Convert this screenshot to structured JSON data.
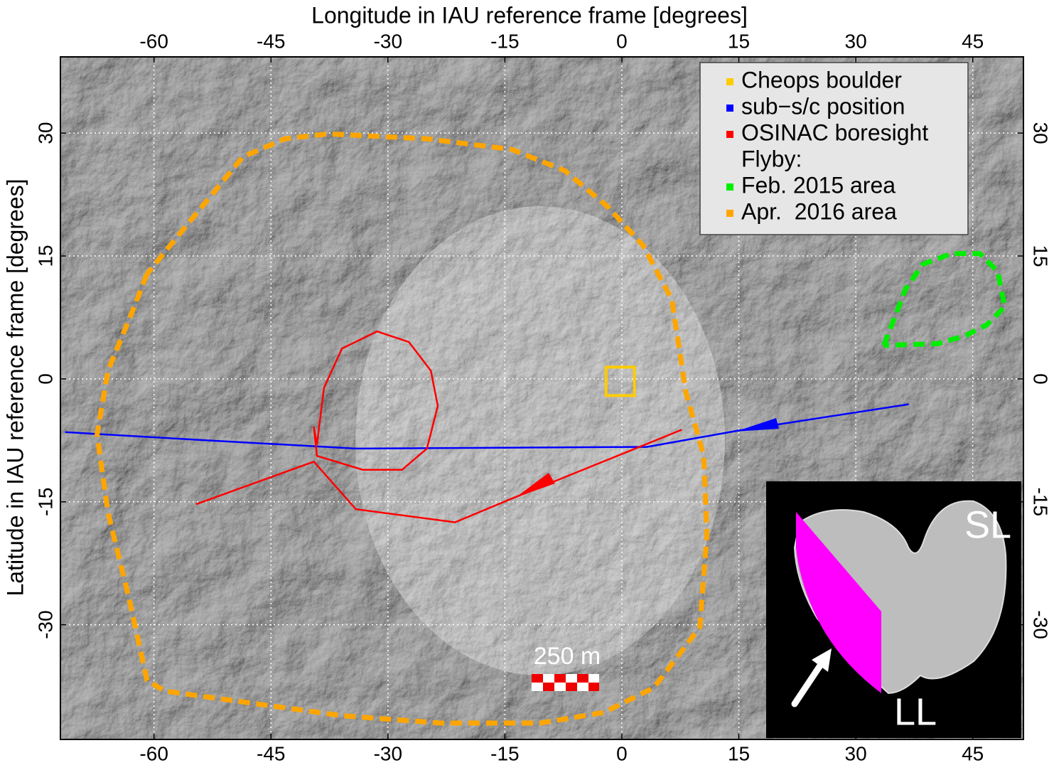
{
  "chart_data": {
    "type": "map",
    "xlabel": "Longitude in IAU reference frame [degrees]",
    "ylabel": "Latitude in IAU reference frame [degrees]",
    "xlim": [
      -72,
      51.5
    ],
    "ylim": [
      -44,
      39.3
    ],
    "xticks": [
      -60,
      -45,
      -30,
      -15,
      0,
      15,
      30,
      45
    ],
    "yticks": [
      -30,
      -15,
      0,
      15,
      30
    ],
    "grid": true,
    "legend_position": "upper right",
    "legend_group_title": "Flyby:",
    "series": [
      {
        "name": "Cheops boulder",
        "color": "#ffcc00",
        "marker": "square",
        "x": [
          -0.2
        ],
        "values": [
          -0.3
        ]
      },
      {
        "name": "sub−s/c position",
        "color": "#0000ff",
        "x": [
          -71.4,
          -55,
          -34.1,
          1.4,
          3.2,
          15,
          36.8
        ],
        "values": [
          -6.5,
          -7.4,
          -8.5,
          -8.3,
          -8.3,
          -6.3,
          -3.1
        ]
      },
      {
        "name": "OSINAC boresight",
        "color": "#ff0000",
        "x": [
          -39.1,
          -38.2,
          -35.9,
          -31.4,
          -27.3,
          -24.5,
          -23.6,
          -25.0,
          -28.2,
          -33.2,
          -39.1,
          -39.5,
          -39.1,
          null,
          -54.6,
          -39.5,
          -34.1,
          -21.4,
          -14.1,
          7.7
        ],
        "values": [
          -8.0,
          -1.1,
          3.7,
          5.8,
          4.5,
          1.0,
          -3.3,
          -8.5,
          -11.1,
          -11.1,
          -9.4,
          -5.9,
          -8.0,
          null,
          -15.3,
          -10.1,
          -15.9,
          -17.5,
          -14.6,
          -6.2
        ]
      },
      {
        "name": "Feb. 2015 area",
        "color": "#00ee00",
        "dashed": true,
        "x": [
          33.6,
          36.4,
          38.6,
          42.3,
          45.9,
          48.2,
          49.1,
          46.8,
          44.1,
          40.5,
          33.6
        ],
        "values": [
          4.1,
          11.0,
          14.0,
          15.3,
          15.3,
          13.1,
          8.8,
          6.6,
          5.3,
          4.3,
          4.1
        ]
      },
      {
        "name": "Apr.  2016 area",
        "color": "#ffa500",
        "dashed": true,
        "x": [
          -60.9,
          -62.7,
          -65.9,
          -67.3,
          -65.9,
          -63.2,
          -60.9,
          -58.6,
          -35.9,
          -23.2,
          -10.5,
          -2.3,
          4.1,
          10.0,
          10.9,
          10.5,
          8.2,
          6.4,
          2.7,
          -1.8,
          -7.3,
          -14.1,
          -25.0,
          -37.7,
          -43.2,
          -48.6,
          -52.3,
          -56.8,
          -60.9
        ],
        "values": [
          12.8,
          8.4,
          1.0,
          -6.8,
          -16.3,
          -26.8,
          -36.8,
          -38.1,
          -41.1,
          -42.0,
          -42.0,
          -40.7,
          -37.7,
          -30.3,
          -19.0,
          -9.4,
          -1.6,
          9.7,
          16.3,
          21.0,
          25.4,
          28.0,
          29.3,
          29.9,
          29.3,
          27.1,
          22.8,
          17.6,
          12.8
        ]
      }
    ],
    "scale_bar_label": "250 m",
    "inset_labels": [
      "SL",
      "LL"
    ]
  }
}
